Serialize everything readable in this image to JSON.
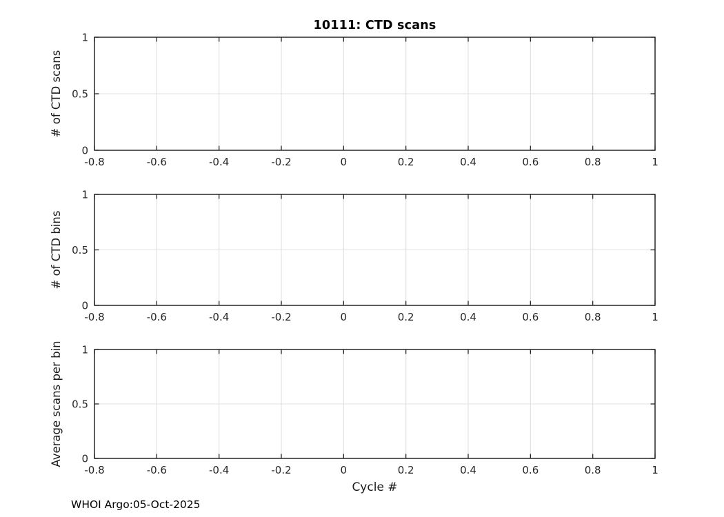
{
  "figure": {
    "title": "10111: CTD scans",
    "xlabel": "Cycle #",
    "footer": "WHOI Argo:05-Oct-2025"
  },
  "colors": {
    "background": "#ffffff",
    "axis": "#262626",
    "grid": "#e0e0e0",
    "text": "#1a1a1a",
    "title_text": "#000000"
  },
  "chart_data": [
    {
      "type": "line",
      "title": "10111: CTD scans",
      "ylabel": "# of CTD scans",
      "xlabel": "",
      "xlim": [
        -0.8,
        1
      ],
      "ylim": [
        0,
        1
      ],
      "x_ticks": [
        -0.8,
        -0.6,
        -0.4,
        -0.2,
        0,
        0.2,
        0.4,
        0.6,
        0.8,
        1
      ],
      "x_tick_labels": [
        "-0.8",
        "-0.6",
        "-0.4",
        "-0.2",
        "0",
        "0.2",
        "0.4",
        "0.6",
        "0.8",
        "1"
      ],
      "y_ticks": [
        0,
        0.5,
        1
      ],
      "y_tick_labels": [
        "0",
        "0.5",
        "1"
      ],
      "grid": true,
      "box": true,
      "series": []
    },
    {
      "type": "line",
      "title": "",
      "ylabel": "# of CTD bins",
      "xlabel": "",
      "xlim": [
        -0.8,
        1
      ],
      "ylim": [
        0,
        1
      ],
      "x_ticks": [
        -0.8,
        -0.6,
        -0.4,
        -0.2,
        0,
        0.2,
        0.4,
        0.6,
        0.8,
        1
      ],
      "x_tick_labels": [
        "-0.8",
        "-0.6",
        "-0.4",
        "-0.2",
        "0",
        "0.2",
        "0.4",
        "0.6",
        "0.8",
        "1"
      ],
      "y_ticks": [
        0,
        0.5,
        1
      ],
      "y_tick_labels": [
        "0",
        "0.5",
        "1"
      ],
      "grid": true,
      "box": true,
      "series": []
    },
    {
      "type": "line",
      "title": "",
      "ylabel": "Average scans per bin",
      "xlabel": "Cycle #",
      "xlim": [
        -0.8,
        1
      ],
      "ylim": [
        0,
        1
      ],
      "x_ticks": [
        -0.8,
        -0.6,
        -0.4,
        -0.2,
        0,
        0.2,
        0.4,
        0.6,
        0.8,
        1
      ],
      "x_tick_labels": [
        "-0.8",
        "-0.6",
        "-0.4",
        "-0.2",
        "0",
        "0.2",
        "0.4",
        "0.6",
        "0.8",
        "1"
      ],
      "y_ticks": [
        0,
        0.5,
        1
      ],
      "y_tick_labels": [
        "0",
        "0.5",
        "1"
      ],
      "grid": true,
      "box": true,
      "series": []
    }
  ]
}
